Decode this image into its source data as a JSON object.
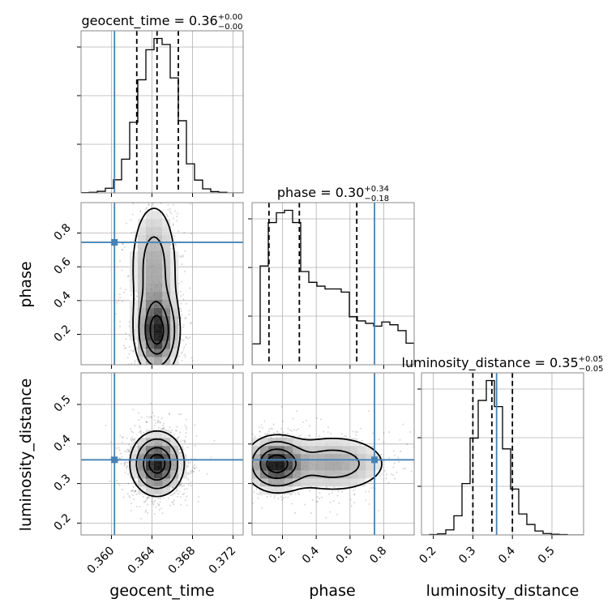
{
  "chart_data": {
    "type": "corner",
    "parameters": [
      "geocent_time",
      "phase",
      "luminosity_distance"
    ],
    "truth": {
      "geocent_time": 0.3603,
      "phase": 0.745,
      "luminosity_distance": 0.36
    },
    "colors": {
      "truth": "#4682b4",
      "hist": "#000000",
      "grid": "#b0b0b0"
    },
    "axes": {
      "geocent_time": {
        "range": [
          0.357,
          0.373
        ],
        "ticks": [
          0.36,
          0.364,
          0.368,
          0.372
        ],
        "tick_labels": [
          "0.360",
          "0.364",
          "0.368",
          "0.372"
        ]
      },
      "phase": {
        "range": [
          0.02,
          0.98
        ],
        "ticks": [
          0.2,
          0.4,
          0.6,
          0.8
        ],
        "tick_labels": [
          "0.2",
          "0.4",
          "0.6",
          "0.8"
        ]
      },
      "luminosity_distance": {
        "range": [
          0.17,
          0.58
        ],
        "ticks": [
          0.2,
          0.3,
          0.4,
          0.5
        ],
        "tick_labels": [
          "0.2",
          "0.3",
          "0.4",
          "0.5"
        ]
      }
    },
    "marginals": [
      {
        "parameter": "geocent_time",
        "title_main": "geocent_time = 0.36",
        "title_sup": "+0.00",
        "title_sub": "−0.00",
        "quantiles": [
          0.3625,
          0.3645,
          0.3666
        ],
        "bin_edges": [
          0.357,
          0.3578,
          0.3586,
          0.3594,
          0.3602,
          0.361,
          0.3618,
          0.3626,
          0.3634,
          0.3642,
          0.365,
          0.3658,
          0.3666,
          0.3674,
          0.3682,
          0.369,
          0.3698,
          0.3706,
          0.3714,
          0.3722,
          0.373
        ],
        "counts": [
          1,
          2,
          5,
          15,
          42,
          108,
          226,
          362,
          458,
          494,
          475,
          368,
          231,
          93,
          41,
          13,
          4,
          2,
          0,
          0
        ]
      },
      {
        "parameter": "phase",
        "title_main": "phase = 0.30",
        "title_sup": "+0.34",
        "title_sub": "−0.18",
        "quantiles": [
          0.12,
          0.3,
          0.64
        ],
        "bin_edges": [
          0.02,
          0.068,
          0.116,
          0.164,
          0.212,
          0.26,
          0.308,
          0.356,
          0.404,
          0.452,
          0.5,
          0.548,
          0.596,
          0.644,
          0.692,
          0.74,
          0.788,
          0.836,
          0.884,
          0.932,
          0.98
        ],
        "counts": [
          60,
          284,
          409,
          437,
          444,
          409,
          268,
          237,
          226,
          218,
          218,
          209,
          138,
          126,
          119,
          111,
          123,
          115,
          98,
          62
        ]
      },
      {
        "parameter": "luminosity_distance",
        "title_main": "luminosity_distance = 0.35",
        "title_sup": "+0.05",
        "title_sub": "−0.05",
        "quantiles": [
          0.3,
          0.348,
          0.4
        ],
        "bin_edges": [
          0.17,
          0.1905,
          0.211,
          0.2315,
          0.252,
          0.2725,
          0.293,
          0.3135,
          0.334,
          0.3545,
          0.375,
          0.3955,
          0.416,
          0.4365,
          0.457,
          0.4775,
          0.498,
          0.5185,
          0.539,
          0.5595,
          0.58
        ],
        "counts": [
          0,
          1,
          3,
          14,
          53,
          142,
          268,
          372,
          427,
          355,
          238,
          127,
          58,
          29,
          11,
          4,
          2,
          1,
          0,
          0
        ]
      }
    ],
    "joint_2d": [
      {
        "x": "geocent_time",
        "y": "phase",
        "peaks": [
          {
            "x": 0.3645,
            "y": 0.21,
            "sx": 0.0011,
            "sy": 0.13,
            "w": 1.0
          },
          {
            "x": 0.3642,
            "y": 0.6,
            "sx": 0.0013,
            "sy": 0.22,
            "w": 0.45
          }
        ]
      },
      {
        "x": "geocent_time",
        "y": "luminosity_distance",
        "peaks": [
          {
            "x": 0.3645,
            "y": 0.35,
            "sx": 0.0013,
            "sy": 0.04,
            "w": 1.0
          }
        ]
      },
      {
        "x": "phase",
        "y": "luminosity_distance",
        "peaks": [
          {
            "x": 0.16,
            "y": 0.35,
            "sx": 0.09,
            "sy": 0.035,
            "w": 1.0
          },
          {
            "x": 0.5,
            "y": 0.35,
            "sx": 0.18,
            "sy": 0.04,
            "w": 0.45
          }
        ]
      }
    ]
  }
}
